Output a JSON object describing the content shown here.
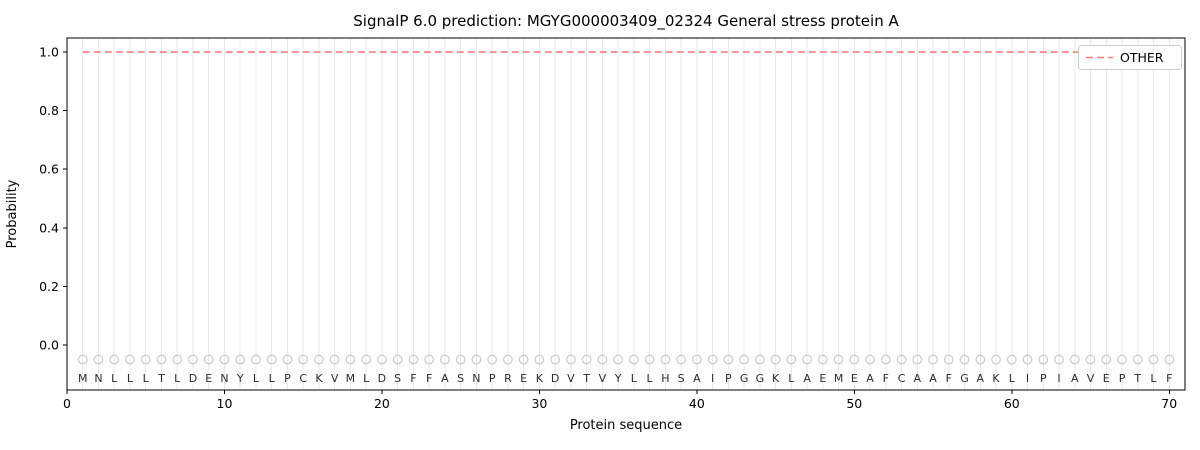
{
  "chart_data": {
    "type": "line",
    "title": "SignalP 6.0 prediction: MGYG000003409_02324 General stress protein A",
    "xlabel": "Protein sequence",
    "ylabel": "Probability",
    "xlim": [
      0,
      71
    ],
    "ylim": [
      -0.154,
      1.048
    ],
    "xticks": [
      0,
      10,
      20,
      30,
      40,
      50,
      60,
      70
    ],
    "yticks": [
      0.0,
      0.2,
      0.4,
      0.6,
      0.8,
      1.0
    ],
    "grid": "vertical-line-per-residue",
    "series": [
      {
        "name": "OTHER",
        "style": "dashed",
        "color": "#f08080",
        "y_constant": 1.0
      }
    ],
    "legend": {
      "position": "upper-right",
      "entries": [
        {
          "label": "OTHER",
          "color": "#f08080",
          "style": "dashed"
        }
      ]
    },
    "sequence": "MNLLLTLDENYLLPCKVMLDSFFASNPREKDVTVYLLHSAIPGGKLAEMEAFCAAFGAKLIPIAVEPTLF",
    "marker_row": {
      "y": -0.05,
      "shape": "open-circle",
      "color": "#c9c9c9"
    },
    "letter_row_y": -0.113,
    "colors": {
      "spine": "#000000",
      "grid": "#e9e9e9",
      "tick": "#000000",
      "legend_border": "#cccccc"
    }
  }
}
